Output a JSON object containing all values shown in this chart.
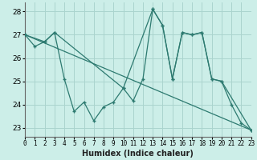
{
  "xlabel": "Humidex (Indice chaleur)",
  "bg_color": "#cceee8",
  "grid_color": "#aad4ce",
  "line_color": "#2d7a70",
  "x_ticks": [
    0,
    1,
    2,
    3,
    4,
    5,
    6,
    7,
    8,
    9,
    10,
    11,
    12,
    13,
    14,
    15,
    16,
    17,
    18,
    19,
    20,
    21,
    22,
    23
  ],
  "ylim": [
    22.6,
    28.4
  ],
  "xlim": [
    0,
    23
  ],
  "yticks": [
    23,
    24,
    25,
    26,
    27,
    28
  ],
  "line1_x": [
    0,
    1,
    2,
    3,
    4,
    5,
    6,
    7,
    8,
    9,
    10,
    11,
    12,
    13,
    14,
    15,
    16,
    17,
    18,
    19,
    20,
    21,
    22,
    23
  ],
  "line1_y": [
    27.0,
    26.5,
    26.7,
    27.1,
    25.1,
    23.7,
    24.1,
    23.3,
    23.9,
    24.1,
    24.7,
    24.15,
    25.1,
    28.1,
    27.4,
    25.1,
    27.1,
    27.0,
    27.1,
    25.1,
    25.0,
    24.0,
    23.2,
    22.9
  ],
  "line2_x": [
    0,
    23
  ],
  "line2_y": [
    27.0,
    22.9
  ],
  "line3_x": [
    0,
    2,
    3,
    10,
    13,
    14,
    15,
    16,
    17,
    18,
    19,
    20,
    23
  ],
  "line3_y": [
    27.0,
    26.7,
    27.1,
    24.7,
    28.1,
    27.4,
    25.1,
    27.1,
    27.0,
    27.1,
    25.1,
    25.0,
    22.9
  ]
}
